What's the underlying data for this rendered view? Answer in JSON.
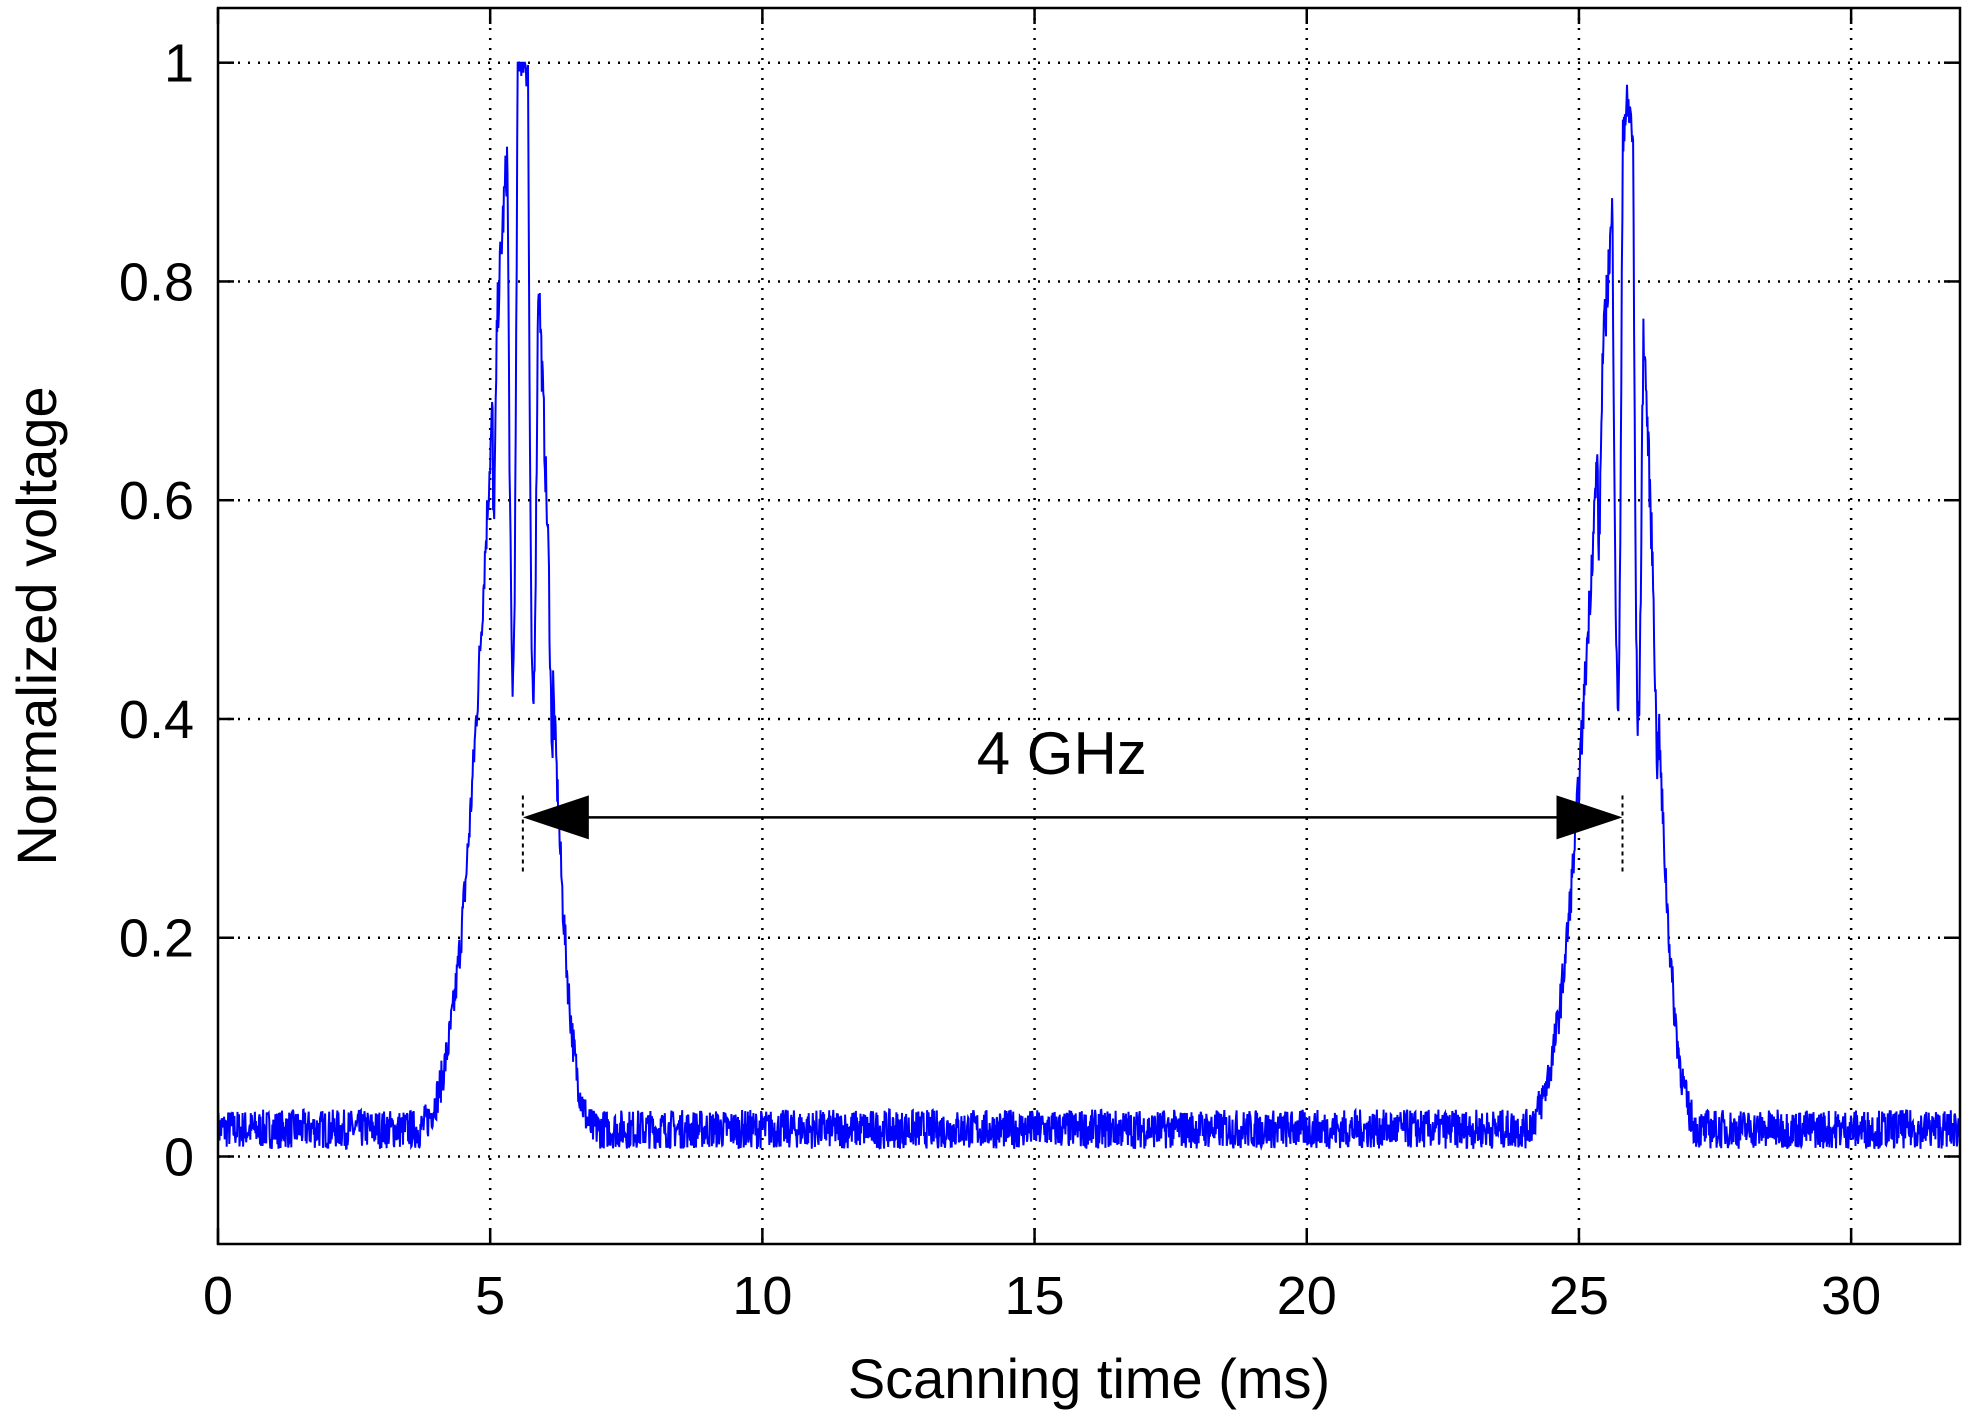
{
  "chart_data": {
    "type": "line",
    "title": "",
    "xlabel": "Scanning time (ms)",
    "ylabel": "Normalized voltage",
    "xlim": [
      0,
      32
    ],
    "ylim": [
      -0.08,
      1.05
    ],
    "xticks": [
      0,
      5,
      10,
      15,
      20,
      25,
      30
    ],
    "yticks": [
      0,
      0.2,
      0.4,
      0.6,
      0.8,
      1
    ],
    "xtick_labels": [
      "0",
      "5",
      "10",
      "15",
      "20",
      "25",
      "30"
    ],
    "ytick_labels": [
      "0",
      "0.2",
      "0.4",
      "0.6",
      "0.8",
      "1"
    ],
    "grid": true,
    "grid_style": "dotted",
    "series_color": "#0000ff",
    "baseline": 0.025,
    "noise_amplitude": 0.018,
    "peaks": [
      {
        "center_ms": 5.6,
        "peak_value": 1.0,
        "fringe_min": 0.35,
        "fringe_peaks": [
          0.93,
          0.95,
          1.0
        ]
      },
      {
        "center_ms": 25.9,
        "peak_value": 0.94,
        "fringe_min": 0.34,
        "fringe_peaks": [
          0.92,
          0.93,
          0.94
        ]
      }
    ],
    "annotation": {
      "text": "4 GHz",
      "x_start_ms": 5.6,
      "x_end_ms": 25.8,
      "y": 0.31,
      "text_x_ms": 15.5,
      "text_y": 0.37
    }
  }
}
